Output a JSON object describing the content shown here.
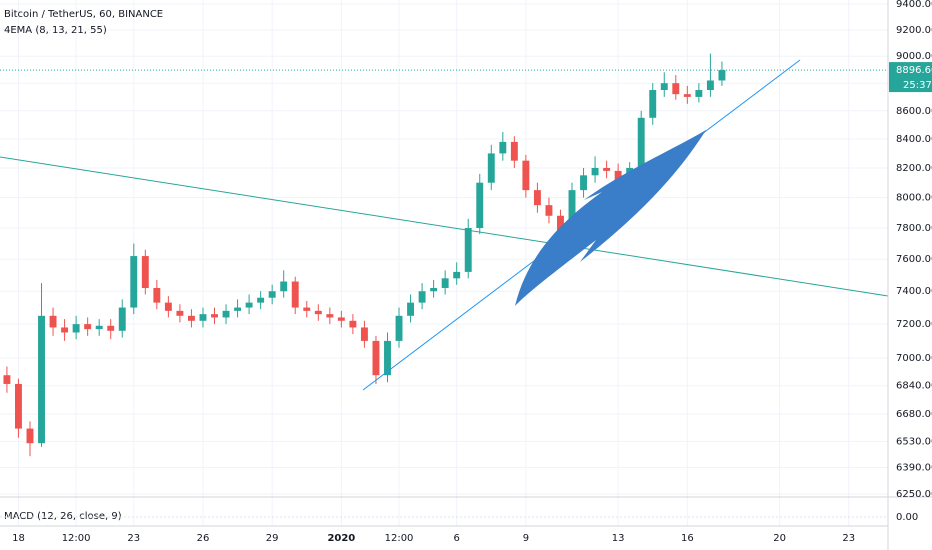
{
  "chart_data": {
    "type": "candlestick",
    "title": "Bitcoin / TetherUS, 60, BINANCE",
    "subtitle": "4EMA (8, 13, 21, 55)",
    "log_scale": true,
    "grid": true,
    "up_color": "#26a69a",
    "down_color": "#ef5350",
    "x": [
      -0.5,
      0,
      0.5,
      1,
      1.5,
      2,
      2.5,
      3,
      3.5,
      4,
      4.5,
      5,
      5.5,
      6,
      6.5,
      7,
      7.5,
      8,
      8.5,
      9,
      9.5,
      10,
      10.5,
      11,
      11.5,
      12,
      12.5,
      13,
      13.5,
      14,
      14.5,
      15,
      15.5,
      16,
      16.5,
      17,
      17.5,
      18,
      18.5,
      19,
      19.5,
      20,
      20.5,
      21,
      21.5,
      22,
      22.5,
      23,
      23.5,
      24,
      24.5,
      25,
      25.5,
      26,
      26.5,
      27,
      27.5,
      28,
      28.5,
      29,
      29.5,
      30,
      30.5
    ],
    "open": [
      6900,
      6850,
      6600,
      6520,
      7250,
      7180,
      7150,
      7200,
      7170,
      7190,
      7160,
      7300,
      7620,
      7420,
      7330,
      7280,
      7250,
      7220,
      7260,
      7240,
      7280,
      7300,
      7330,
      7360,
      7400,
      7460,
      7300,
      7280,
      7260,
      7240,
      7220,
      7180,
      7100,
      6900,
      7100,
      7250,
      7330,
      7400,
      7420,
      7480,
      7520,
      7800,
      8100,
      8300,
      8380,
      8250,
      8050,
      7950,
      7880,
      7750,
      8050,
      8150,
      8200,
      8180,
      8120,
      8200,
      8550,
      8750,
      8800,
      8720,
      8700,
      8750,
      8820
    ],
    "high": [
      6950,
      6880,
      6640,
      7450,
      7300,
      7230,
      7250,
      7240,
      7230,
      7230,
      7350,
      7700,
      7660,
      7470,
      7370,
      7320,
      7290,
      7300,
      7300,
      7320,
      7350,
      7380,
      7400,
      7440,
      7530,
      7490,
      7340,
      7320,
      7300,
      7280,
      7260,
      7220,
      7130,
      7150,
      7300,
      7380,
      7450,
      7470,
      7530,
      7580,
      7860,
      8160,
      8360,
      8450,
      8420,
      8290,
      8100,
      8000,
      7920,
      8100,
      8200,
      8280,
      8250,
      8230,
      8240,
      8600,
      8800,
      8880,
      8860,
      8780,
      8800,
      9020,
      8960
    ],
    "low": [
      6800,
      6550,
      6450,
      6500,
      7130,
      7100,
      7110,
      7130,
      7130,
      7110,
      7120,
      7260,
      7380,
      7290,
      7240,
      7210,
      7180,
      7180,
      7200,
      7200,
      7240,
      7260,
      7290,
      7320,
      7360,
      7260,
      7240,
      7220,
      7200,
      7180,
      7140,
      7060,
      6850,
      6860,
      7060,
      7210,
      7290,
      7360,
      7380,
      7440,
      7480,
      7760,
      8050,
      8250,
      8200,
      8000,
      7900,
      7830,
      7700,
      7700,
      8000,
      8100,
      8130,
      8080,
      8070,
      8150,
      8500,
      8700,
      8680,
      8650,
      8660,
      8700,
      8780
    ],
    "close": [
      6850,
      6600,
      6520,
      7250,
      7180,
      7150,
      7200,
      7170,
      7190,
      7160,
      7300,
      7620,
      7420,
      7330,
      7280,
      7250,
      7220,
      7260,
      7240,
      7280,
      7300,
      7330,
      7360,
      7400,
      7460,
      7300,
      7280,
      7260,
      7240,
      7220,
      7180,
      7100,
      6900,
      7100,
      7250,
      7330,
      7400,
      7420,
      7480,
      7520,
      7800,
      8100,
      8300,
      8380,
      8250,
      8050,
      7950,
      7880,
      7750,
      8050,
      8150,
      8200,
      8180,
      8120,
      8200,
      8550,
      8750,
      8800,
      8720,
      8700,
      8750,
      8820,
      8896.6
    ],
    "xlim": [
      -0.8,
      37.7
    ],
    "ylim": [
      6250,
      9400
    ],
    "xticks": [
      {
        "value": 0,
        "label": "18"
      },
      {
        "value": 2.5,
        "label": "12:00"
      },
      {
        "value": 5,
        "label": "23"
      },
      {
        "value": 8,
        "label": "26"
      },
      {
        "value": 11,
        "label": "29"
      },
      {
        "value": 14,
        "label": "2020"
      },
      {
        "value": 16.5,
        "label": "12:00"
      },
      {
        "value": 19,
        "label": "6"
      },
      {
        "value": 22,
        "label": "9"
      },
      {
        "value": 26,
        "label": "13"
      },
      {
        "value": 29,
        "label": "16"
      },
      {
        "value": 33,
        "label": "20"
      },
      {
        "value": 36,
        "label": "23"
      }
    ],
    "yticks": [
      {
        "value": 9400,
        "label": "9400.00"
      },
      {
        "value": 9200,
        "label": "9200.00"
      },
      {
        "value": 9000,
        "label": "9000.00"
      },
      {
        "value": 8800,
        "label": "8800.00"
      },
      {
        "value": 8600,
        "label": "8600.00"
      },
      {
        "value": 8400,
        "label": "8400.00"
      },
      {
        "value": 8200,
        "label": "8200.00"
      },
      {
        "value": 8000,
        "label": "8000.00"
      },
      {
        "value": 7800,
        "label": "7800.00"
      },
      {
        "value": 7600,
        "label": "7600.00"
      },
      {
        "value": 7400,
        "label": "7400.00"
      },
      {
        "value": 7200,
        "label": "7200.00"
      },
      {
        "value": 7000,
        "label": "7000.00"
      },
      {
        "value": 6840,
        "label": "6840.00"
      },
      {
        "value": 6680,
        "label": "6680.00"
      },
      {
        "value": 6530,
        "label": "6530.00"
      },
      {
        "value": 6390,
        "label": "6390.00"
      },
      {
        "value": 6250,
        "label": "6250.00"
      }
    ],
    "last_price": {
      "value": 8896.6,
      "label": "8896.60"
    },
    "countdown": "25:37",
    "macd": {
      "label": "MACD (12, 26, close, 9)",
      "yticks": [
        {
          "value": 0,
          "label": "0.00"
        }
      ]
    }
  }
}
